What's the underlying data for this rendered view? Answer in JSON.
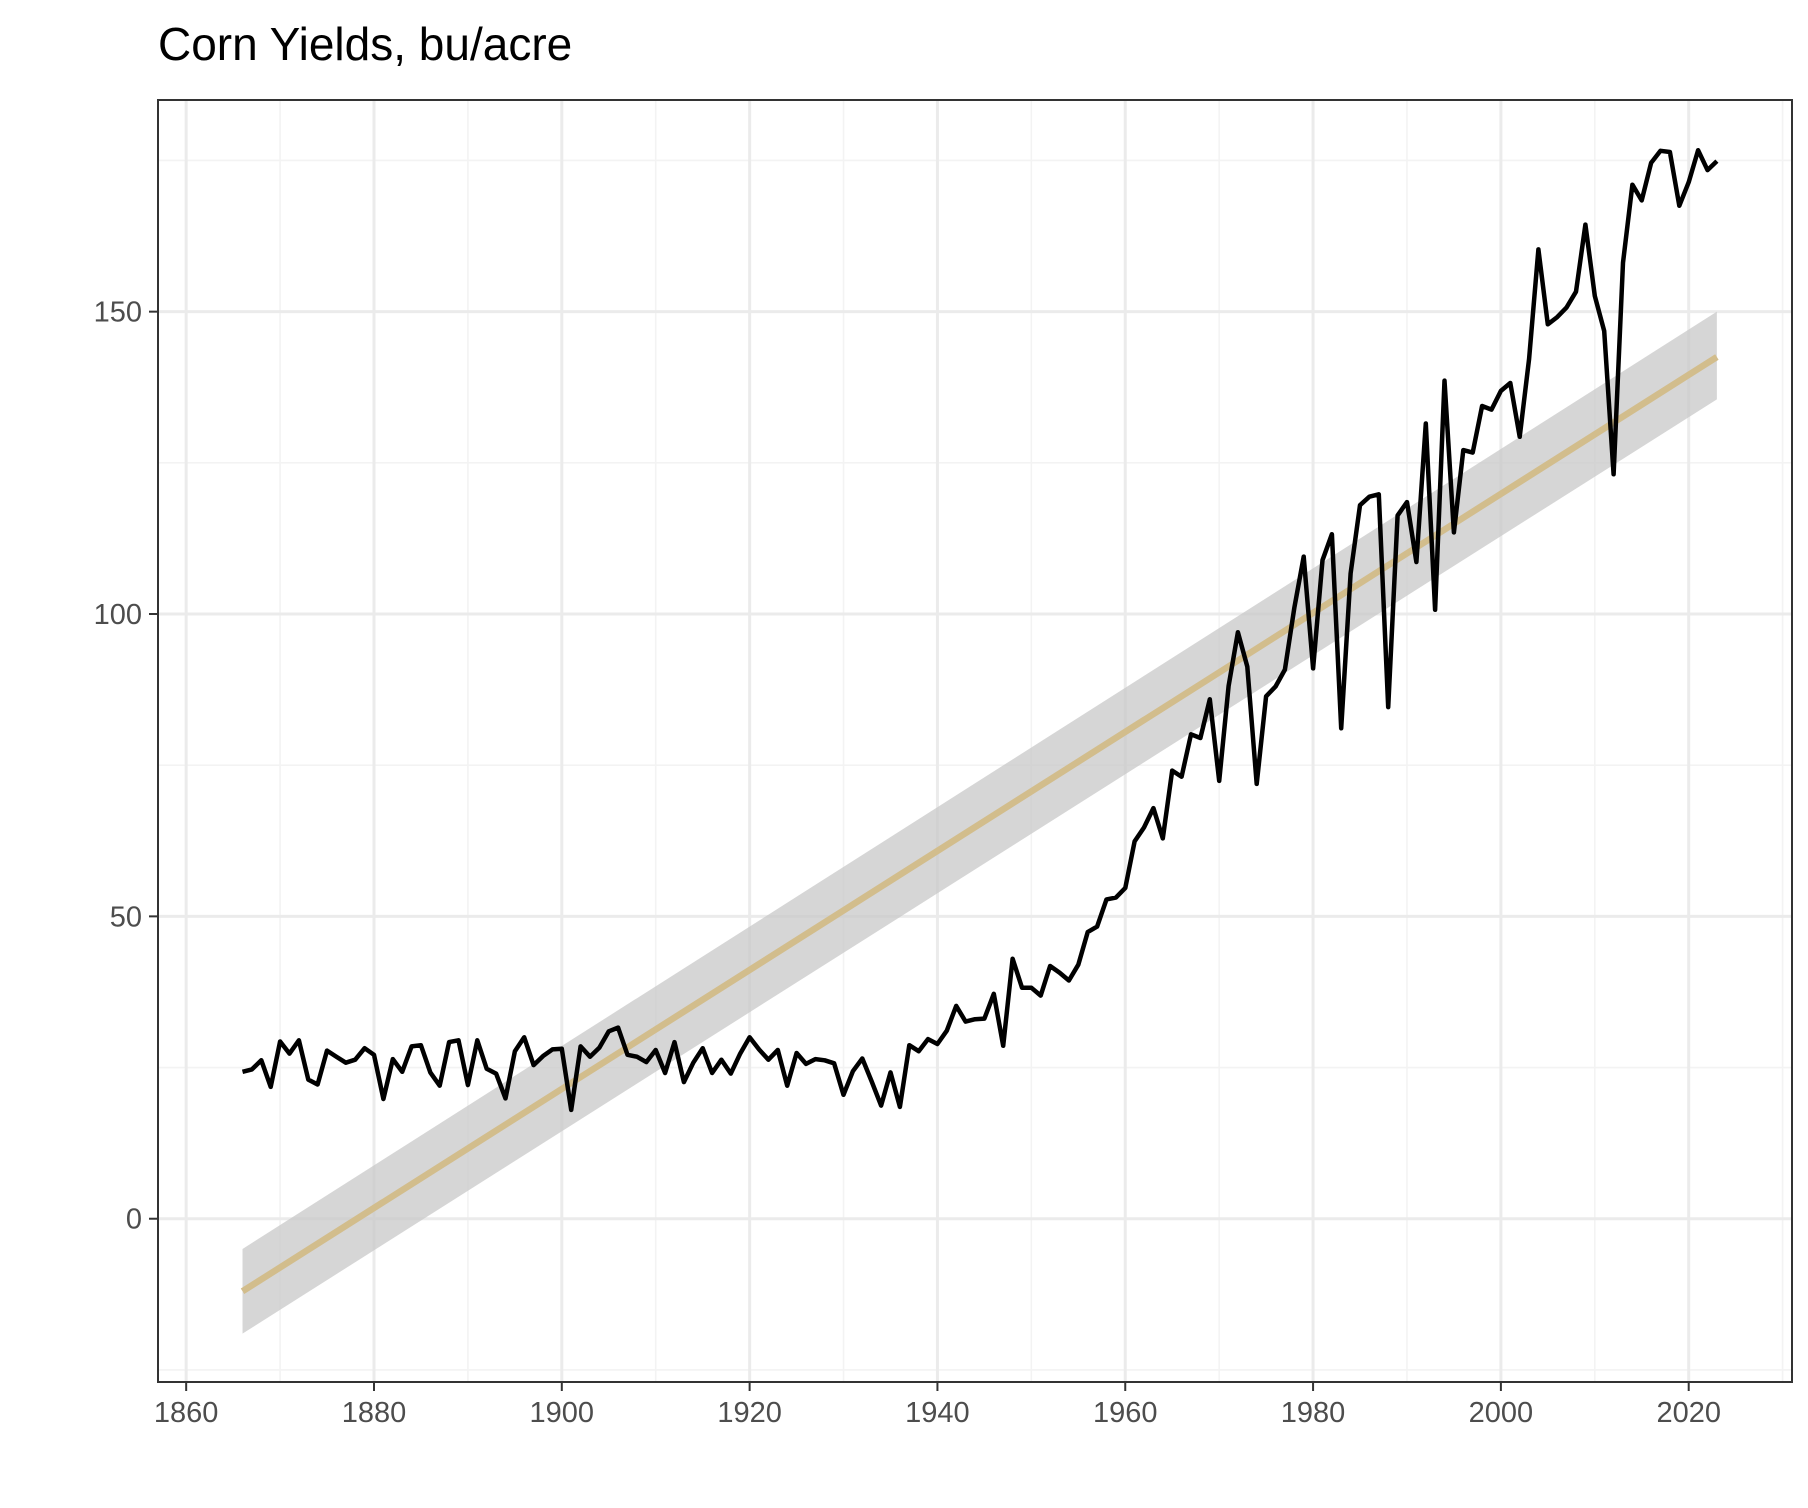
{
  "chart_data": {
    "type": "line",
    "title": "Corn Yields, bu/acre",
    "xlabel": "",
    "ylabel": "",
    "xlim": [
      1857,
      2031
    ],
    "ylim": [
      -27,
      185
    ],
    "x_ticks": [
      1860,
      1880,
      1900,
      1920,
      1940,
      1960,
      1980,
      2000,
      2020
    ],
    "y_ticks": [
      0,
      50,
      100,
      150
    ],
    "grid": true,
    "legend": "none",
    "colors": {
      "series": "#000000",
      "trend": "#d2bd8c",
      "band": "#c8c8c8"
    },
    "series": [
      {
        "x": [
          1866,
          1867,
          1868,
          1869,
          1870,
          1871,
          1872,
          1873,
          1874,
          1875,
          1876,
          1877,
          1878,
          1879,
          1880,
          1881,
          1882,
          1883,
          1884,
          1885,
          1886,
          1887,
          1888,
          1889,
          1890,
          1891,
          1892,
          1893,
          1894,
          1895,
          1896,
          1897,
          1898,
          1899,
          1900,
          1901,
          1902,
          1903,
          1904,
          1905,
          1906,
          1907,
          1908,
          1909,
          1910,
          1911,
          1912,
          1913,
          1914,
          1915,
          1916,
          1917,
          1918,
          1919,
          1920,
          1921,
          1922,
          1923,
          1924,
          1925,
          1926,
          1927,
          1928,
          1929,
          1930,
          1931,
          1932,
          1933,
          1934,
          1935,
          1936,
          1937,
          1938,
          1939,
          1940,
          1941,
          1942,
          1943,
          1944,
          1945,
          1946,
          1947,
          1948,
          1949,
          1950,
          1951,
          1952,
          1953,
          1954,
          1955,
          1956,
          1957,
          1958,
          1959,
          1960,
          1961,
          1962,
          1963,
          1964,
          1965,
          1966,
          1967,
          1968,
          1969,
          1970,
          1971,
          1972,
          1973,
          1974,
          1975,
          1976,
          1977,
          1978,
          1979,
          1980,
          1981,
          1982,
          1983,
          1984,
          1985,
          1986,
          1987,
          1988,
          1989,
          1990,
          1991,
          1992,
          1993,
          1994,
          1995,
          1996,
          1997,
          1998,
          1999,
          2000,
          2001,
          2002,
          2003,
          2004,
          2005,
          2006,
          2007,
          2008,
          2009,
          2010,
          2011,
          2012,
          2013,
          2014,
          2015,
          2016,
          2017,
          2018,
          2019,
          2020,
          2021,
          2022,
          2023
        ],
        "values": [
          24.3,
          24.7,
          26.2,
          21.8,
          29.3,
          27.3,
          29.5,
          23.0,
          22.2,
          27.8,
          26.8,
          25.8,
          26.3,
          28.2,
          27.1,
          19.8,
          26.4,
          24.3,
          28.5,
          28.7,
          24.2,
          22.0,
          29.2,
          29.5,
          22.1,
          29.5,
          24.8,
          24.0,
          19.9,
          27.7,
          30.0,
          25.4,
          26.9,
          28.0,
          28.1,
          18.0,
          28.5,
          26.8,
          28.3,
          31.0,
          31.6,
          27.1,
          26.8,
          25.9,
          27.9,
          24.1,
          29.2,
          22.6,
          25.8,
          28.2,
          24.1,
          26.3,
          24.0,
          27.3,
          30.0,
          28.0,
          26.3,
          27.9,
          22.0,
          27.4,
          25.6,
          26.4,
          26.2,
          25.7,
          20.5,
          24.4,
          26.5,
          22.7,
          18.7,
          24.2,
          18.5,
          28.7,
          27.7,
          29.7,
          28.9,
          31.1,
          35.2,
          32.6,
          33.0,
          33.1,
          37.2,
          28.6,
          43.0,
          38.2,
          38.2,
          36.9,
          41.8,
          40.7,
          39.4,
          42.0,
          47.4,
          48.3,
          52.8,
          53.1,
          54.7,
          62.4,
          64.7,
          67.9,
          62.9,
          74.1,
          73.1,
          80.1,
          79.5,
          85.9,
          72.4,
          88.1,
          97.0,
          91.3,
          71.9,
          86.4,
          88.0,
          90.8,
          101.0,
          109.5,
          91.0,
          108.9,
          113.2,
          81.1,
          106.7,
          118.0,
          119.4,
          119.8,
          84.6,
          116.3,
          118.5,
          108.6,
          131.5,
          100.7,
          138.6,
          113.5,
          127.1,
          126.7,
          134.4,
          133.8,
          136.9,
          138.2,
          129.3,
          142.2,
          160.3,
          147.9,
          149.1,
          150.7,
          153.3,
          164.4,
          152.6,
          146.8,
          123.1,
          158.1,
          171.0,
          168.4,
          174.6,
          176.6,
          176.4,
          167.5,
          171.4,
          176.7,
          173.4,
          174.9
        ]
      }
    ],
    "trend": {
      "x": [
        1866,
        2023
      ],
      "fit": [
        -12.0,
        142.5
      ],
      "lower": [
        -19.0,
        135.5
      ],
      "upper": [
        -5.0,
        150.0
      ]
    }
  }
}
